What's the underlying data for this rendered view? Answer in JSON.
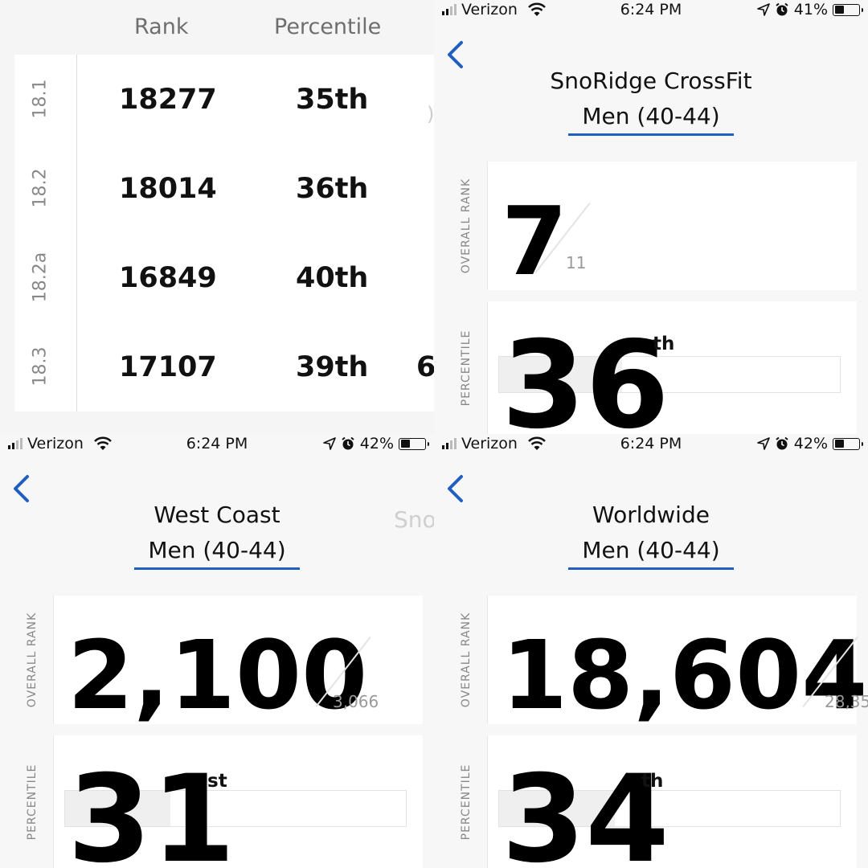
{
  "table": {
    "headers": {
      "rank": "Rank",
      "percentile": "Percentile"
    },
    "rows": [
      {
        "wod": "18.1",
        "rank": "18277",
        "percentile": "35th",
        "extra": ""
      },
      {
        "wod": "18.2",
        "rank": "18014",
        "percentile": "36th",
        "extra": ""
      },
      {
        "wod": "18.2a",
        "rank": "16849",
        "percentile": "40th",
        "extra": ""
      },
      {
        "wod": "18.3",
        "rank": "17107",
        "percentile": "39th",
        "extra": "6"
      }
    ],
    "edge_hint": ")"
  },
  "screens": [
    {
      "status": {
        "carrier": "Verizon",
        "time": "6:24 PM",
        "battery": "41%",
        "battery_level": 0.41
      },
      "title": "SnoRidge CrossFit",
      "division": "Men (40-44)",
      "rank_label": "OVERALL RANK",
      "rank": "7",
      "total": "11",
      "percentile_label": "PERCENTILE",
      "percentile": "36",
      "percentile_suffix": "th",
      "percentile_value": 36
    },
    {
      "status": {
        "carrier": "Verizon",
        "time": "6:24 PM",
        "battery": "42%",
        "battery_level": 0.42
      },
      "title": "West Coast",
      "division": "Men (40-44)",
      "next_tab_hint": "Sno",
      "rank_label": "OVERALL RANK",
      "rank": "2,100",
      "total": "3,066",
      "percentile_label": "PERCENTILE",
      "percentile": "31",
      "percentile_suffix": "st",
      "percentile_value": 31
    },
    {
      "status": {
        "carrier": "Verizon",
        "time": "6:24 PM",
        "battery": "42%",
        "battery_level": 0.42
      },
      "title": "Worldwide",
      "division": "Men (40-44)",
      "rank_label": "OVERALL RANK",
      "rank": "18,604",
      "total": "28,35",
      "percentile_label": "PERCENTILE",
      "percentile": "34",
      "percentile_suffix": "th",
      "percentile_value": 34
    }
  ],
  "icons": {
    "back": "chevron-left-icon",
    "signal": "signal-bars-icon",
    "wifi": "wifi-icon",
    "location": "location-arrow-icon",
    "alarm": "alarm-clock-icon",
    "battery": "battery-icon"
  },
  "colors": {
    "accent": "#1f5fbf",
    "text": "#111111",
    "muted": "#888888"
  }
}
